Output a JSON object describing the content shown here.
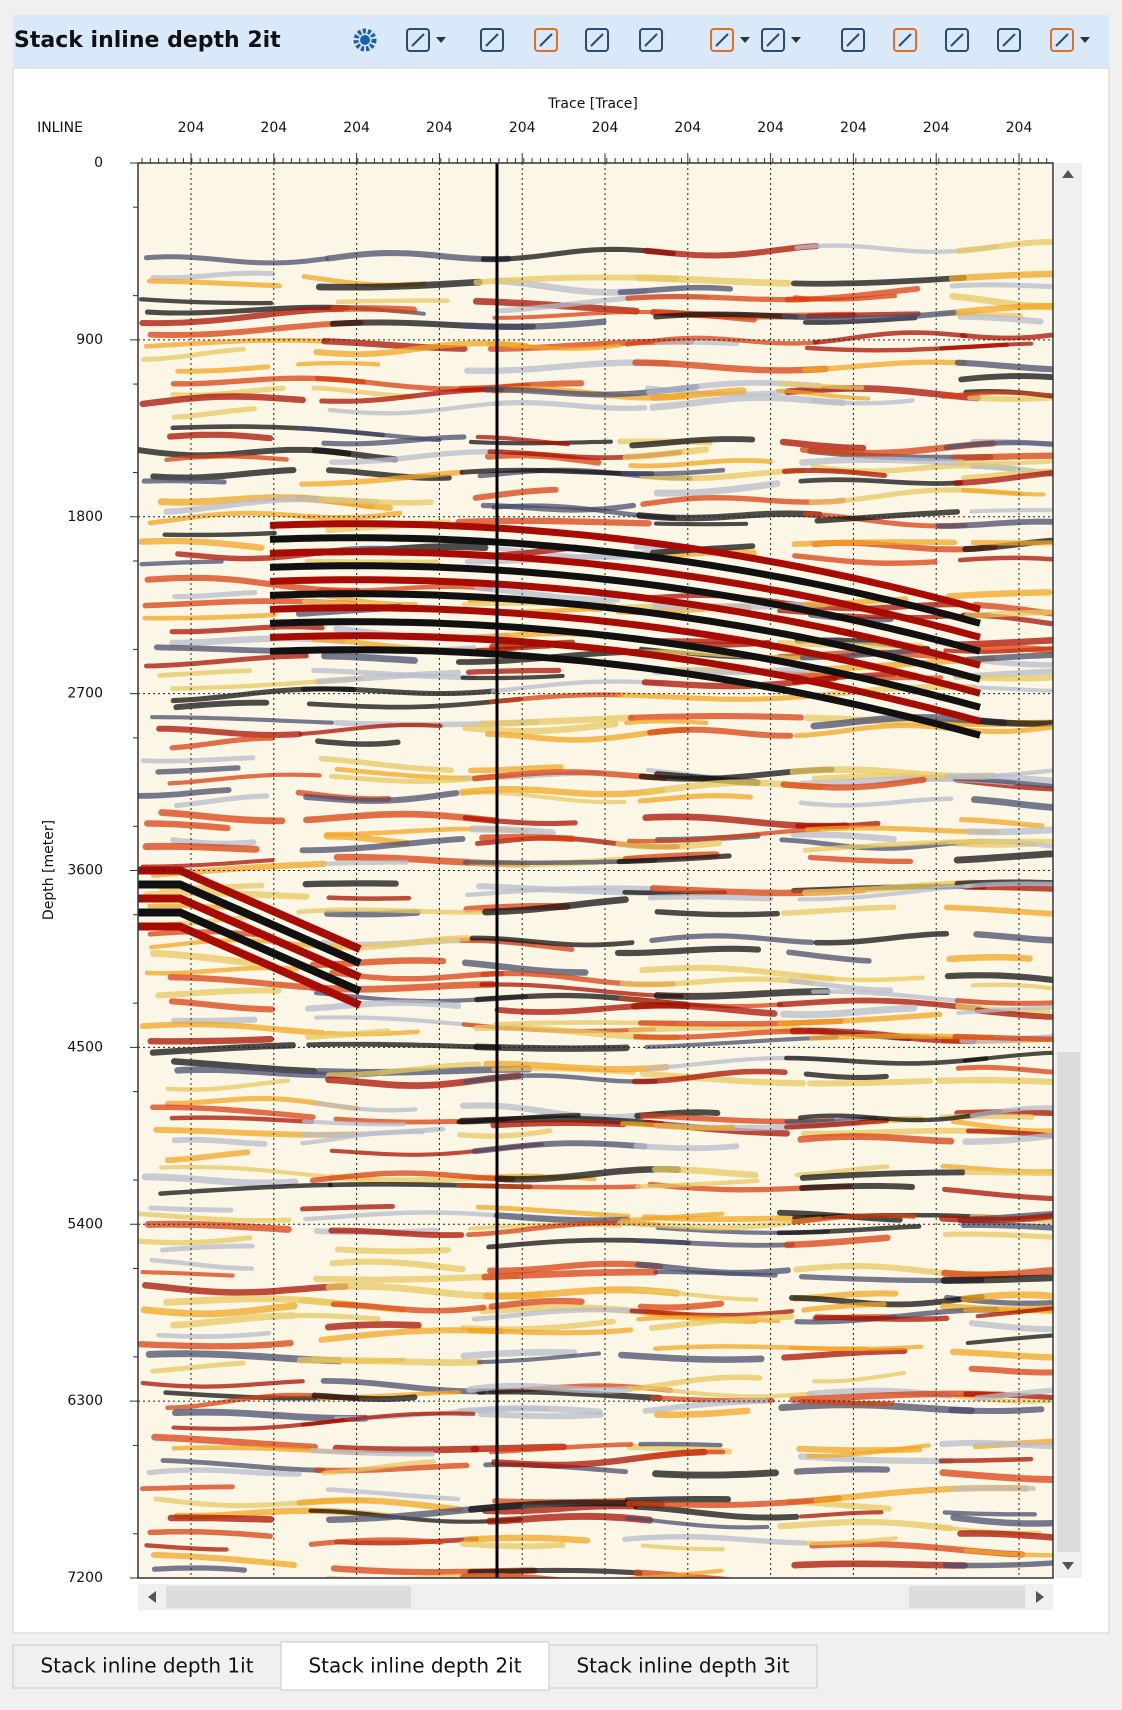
{
  "window": {
    "title": "Stack inline depth 2it"
  },
  "chart_data": {
    "type": "seismic",
    "x_axis_title": "Trace [Trace]",
    "x_row_label": "INLINE",
    "y_axis_title": "Depth [meter]",
    "inline_labels": [
      "204",
      "204",
      "204",
      "204",
      "204",
      "204",
      "204",
      "204",
      "204",
      "204",
      "204"
    ],
    "ylim": [
      0,
      7200
    ],
    "yticks": [
      0,
      900,
      1800,
      2700,
      3600,
      4500,
      5400,
      6300,
      7200
    ],
    "grid": true
  },
  "tabs": {
    "items": [
      "Stack inline depth 1it",
      "Stack inline depth 2it",
      "Stack inline depth 3it"
    ],
    "active": 1
  }
}
